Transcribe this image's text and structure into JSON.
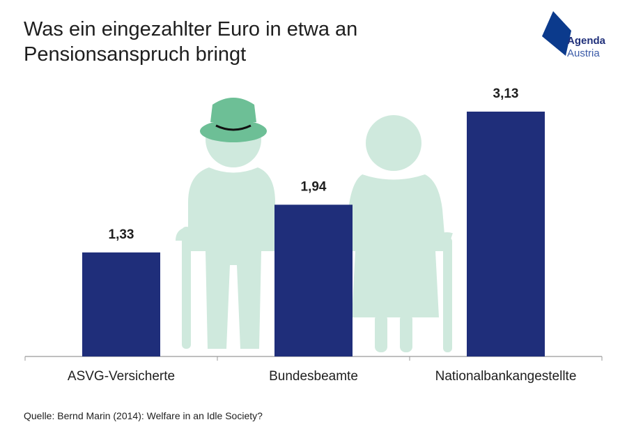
{
  "title": "Was ein eingezahlter Euro in etwa an Pensionsanspruch bringt",
  "logo": {
    "line1": "Agenda",
    "line2": "Austria",
    "color": "#0b3a8c"
  },
  "source": "Quelle: Bernd Marin (2014): Welfare in an Idle Society?",
  "colors": {
    "bar": "#1f2e7a",
    "illustration": "#cfe9dd",
    "hat": "#6dbf96",
    "axis": "#999999"
  },
  "chart_data": {
    "type": "bar",
    "categories": [
      "ASVG-Versicherte",
      "Bundesbeamte",
      "Nationalbankangestellte"
    ],
    "values": [
      1.33,
      1.94,
      3.13
    ],
    "value_labels": [
      "1,33",
      "1,94",
      "3,13"
    ],
    "ylim": [
      0,
      3.13
    ],
    "grid": false,
    "legend": "none"
  }
}
